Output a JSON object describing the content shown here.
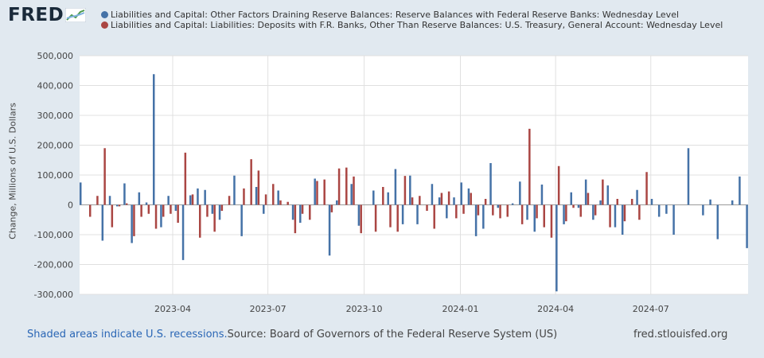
{
  "logo": {
    "text": "FRED"
  },
  "legend": [
    {
      "label": "Liabilities and Capital: Other Factors Draining Reserve Balances: Reserve Balances with Federal Reserve Banks: Wednesday Level",
      "color": "#4572a7"
    },
    {
      "label": "Liabilities and Capital: Liabilities: Deposits with F.R. Banks, Other Than Reserve Balances: U.S. Treasury, General Account: Wednesday Level",
      "color": "#aa4643"
    }
  ],
  "footer": {
    "recessions_link": "Shaded areas indicate U.S. recessions.",
    "source": "Source: Board of Governors of the Federal Reserve System (US)",
    "site": "fred.stlouisfed.org"
  },
  "chart_data": {
    "type": "bar",
    "ylabel": "Change, Millions of U.S. Dollars",
    "ylim": [
      -300000,
      500000
    ],
    "yticks": [
      500000,
      400000,
      300000,
      200000,
      100000,
      0,
      -100000,
      -200000,
      -300000
    ],
    "ytick_labels": [
      "500,000",
      "400,000",
      "300,000",
      "200,000",
      "100,000",
      "0",
      "-100,000",
      "-200,000",
      "-300,000"
    ],
    "xlim": [
      "2023-01-02",
      "2024-10-02"
    ],
    "xticks": [
      "2023-04-01",
      "2023-07-01",
      "2023-10-01",
      "2024-01-01",
      "2024-04-01",
      "2024-07-01"
    ],
    "xtick_labels": [
      "2023-04",
      "2023-07",
      "2023-10",
      "2024-01",
      "2024-04",
      "2024-07"
    ],
    "grid": true,
    "start_date": "2023-01-04",
    "period": "weekly",
    "series": [
      {
        "name": "Liabilities and Capital: Other Factors Draining Reserve Balances: Reserve Balances with Federal Reserve Banks: Wednesday Level",
        "color": "#4572a7",
        "values": [
          75000,
          -120000,
          30000,
          -5000,
          72000,
          -128000,
          42000,
          8000,
          438000,
          -75000,
          30000,
          -20000,
          -185000,
          32000,
          55000,
          50000,
          -30000,
          -50000,
          98000,
          -105000,
          60000,
          -30000,
          48000,
          -50000,
          -60000,
          88000,
          -170000,
          15000,
          70000,
          -70000,
          48000,
          42000,
          120000,
          -65000,
          98000,
          -65000,
          70000,
          25000,
          -45000,
          25000,
          75000,
          55000,
          -105000,
          -80000,
          140000,
          -10000,
          5000,
          78000,
          -50000,
          -90000,
          68000,
          -290000,
          -65000,
          42000,
          -10000,
          85000,
          -50000,
          15000,
          65000,
          -75000,
          -100000,
          50000,
          20000,
          -40000,
          -30000,
          -100000,
          190000,
          -35000,
          18000,
          -115000,
          15000,
          95000,
          -145000
        ],
        "dates": [
          "2023-01-04",
          "2023-01-25",
          "2023-02-01",
          "2023-02-08",
          "2023-02-15",
          "2023-02-22",
          "2023-03-01",
          "2023-03-08",
          "2023-03-15",
          "2023-03-22",
          "2023-03-29",
          "2023-04-05",
          "2023-04-12",
          "2023-04-19",
          "2023-04-26",
          "2023-05-03",
          "2023-05-10",
          "2023-05-17",
          "2023-05-31",
          "2023-06-07",
          "2023-06-21",
          "2023-06-28",
          "2023-07-12",
          "2023-07-26",
          "2023-08-02",
          "2023-08-16",
          "2023-08-30",
          "2023-09-06",
          "2023-09-20",
          "2023-09-27",
          "2023-10-11",
          "2023-10-25",
          "2023-11-01",
          "2023-11-08",
          "2023-11-15",
          "2023-11-22",
          "2023-12-06",
          "2023-12-13",
          "2023-12-20",
          "2023-12-27",
          "2024-01-03",
          "2024-01-10",
          "2024-01-17",
          "2024-01-24",
          "2024-01-31",
          "2024-02-07",
          "2024-02-21",
          "2024-02-28",
          "2024-03-06",
          "2024-03-13",
          "2024-03-20",
          "2024-04-03",
          "2024-04-10",
          "2024-04-17",
          "2024-04-24",
          "2024-05-01",
          "2024-05-08",
          "2024-05-15",
          "2024-05-22",
          "2024-05-29",
          "2024-06-05",
          "2024-06-19",
          "2024-07-03",
          "2024-07-10",
          "2024-07-17",
          "2024-07-24",
          "2024-08-07",
          "2024-08-21",
          "2024-08-28",
          "2024-09-04",
          "2024-09-18",
          "2024-09-25",
          "2024-10-02"
        ]
      },
      {
        "name": "Liabilities and Capital: Liabilities: Deposits with F.R. Banks, Other Than Reserve Balances: U.S. Treasury, General Account: Wednesday Level",
        "color": "#aa4643",
        "values": [
          -40000,
          30000,
          190000,
          -75000,
          -5000,
          5000,
          -105000,
          -40000,
          -30000,
          -80000,
          -40000,
          -30000,
          -60000,
          175000,
          35000,
          -110000,
          -40000,
          -90000,
          -20000,
          30000,
          55000,
          153000,
          115000,
          35000,
          70000,
          15000,
          10000,
          -95000,
          -30000,
          -50000,
          80000,
          85000,
          -25000,
          122000,
          125000,
          95000,
          -95000,
          -90000,
          60000,
          -75000,
          -90000,
          97000,
          25000,
          30000,
          -20000,
          -80000,
          40000,
          45000,
          -45000,
          -30000,
          40000,
          -35000,
          20000,
          -35000,
          -45000,
          -40000,
          -65000,
          255000,
          -45000,
          -75000,
          -110000,
          130000,
          -55000,
          -10000,
          -40000,
          40000,
          -35000,
          85000,
          -75000,
          20000,
          -55000,
          20000,
          -50000,
          110000
        ],
        "dates": [
          "2023-01-11",
          "2023-01-18",
          "2023-01-25",
          "2023-02-01",
          "2023-02-08",
          "2023-02-15",
          "2023-02-22",
          "2023-03-01",
          "2023-03-08",
          "2023-03-15",
          "2023-03-22",
          "2023-03-29",
          "2023-04-05",
          "2023-04-12",
          "2023-04-19",
          "2023-04-26",
          "2023-05-03",
          "2023-05-10",
          "2023-05-17",
          "2023-05-24",
          "2023-06-07",
          "2023-06-14",
          "2023-06-21",
          "2023-06-28",
          "2023-07-05",
          "2023-07-12",
          "2023-07-19",
          "2023-07-26",
          "2023-08-02",
          "2023-08-09",
          "2023-08-16",
          "2023-08-23",
          "2023-08-30",
          "2023-09-06",
          "2023-09-13",
          "2023-09-20",
          "2023-09-27",
          "2023-10-11",
          "2023-10-18",
          "2023-10-25",
          "2023-11-01",
          "2023-11-08",
          "2023-11-15",
          "2023-11-22",
          "2023-11-29",
          "2023-12-06",
          "2023-12-13",
          "2023-12-20",
          "2023-12-27",
          "2024-01-03",
          "2024-01-10",
          "2024-01-17",
          "2024-01-24",
          "2024-01-31",
          "2024-02-07",
          "2024-02-14",
          "2024-02-28",
          "2024-03-06",
          "2024-03-13",
          "2024-03-20",
          "2024-03-27",
          "2024-04-03",
          "2024-04-10",
          "2024-04-17",
          "2024-04-24",
          "2024-05-01",
          "2024-05-08",
          "2024-05-15",
          "2024-05-22",
          "2024-05-29",
          "2024-06-05",
          "2024-06-12",
          "2024-06-19",
          "2024-06-26"
        ]
      }
    ]
  }
}
